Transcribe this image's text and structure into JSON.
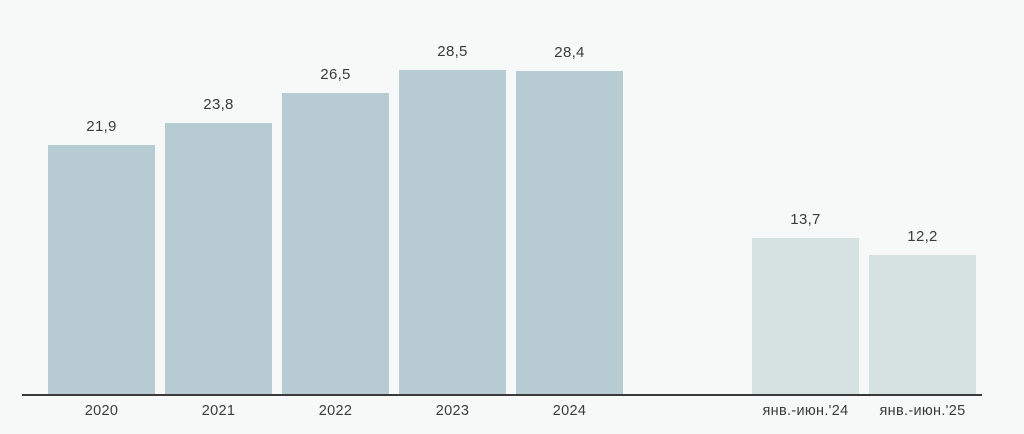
{
  "chart_data": {
    "type": "bar",
    "categories": [
      "2020",
      "2021",
      "2022",
      "2023",
      "2024",
      "янв.-июн.'24",
      "янв.-июн.'25"
    ],
    "values": [
      21.9,
      23.8,
      26.5,
      28.5,
      28.4,
      13.7,
      12.2
    ],
    "value_labels": [
      "21,9",
      "23,8",
      "26,5",
      "28,5",
      "28,4",
      "13,7",
      "12,2"
    ],
    "groups": [
      "full-year",
      "full-year",
      "full-year",
      "full-year",
      "full-year",
      "half-year",
      "half-year"
    ],
    "colors": {
      "full-year": "#b7ccd2",
      "half-year": "#d6e1e1"
    },
    "title": "",
    "xlabel": "",
    "ylabel": "",
    "ylim": [
      0,
      28.5
    ],
    "grid": false,
    "legend": false,
    "decimal_separator": ",",
    "background_color": "#f7f8f8",
    "axis_line_color": "#3a3a3a",
    "text_color": "#3b3b3b"
  }
}
